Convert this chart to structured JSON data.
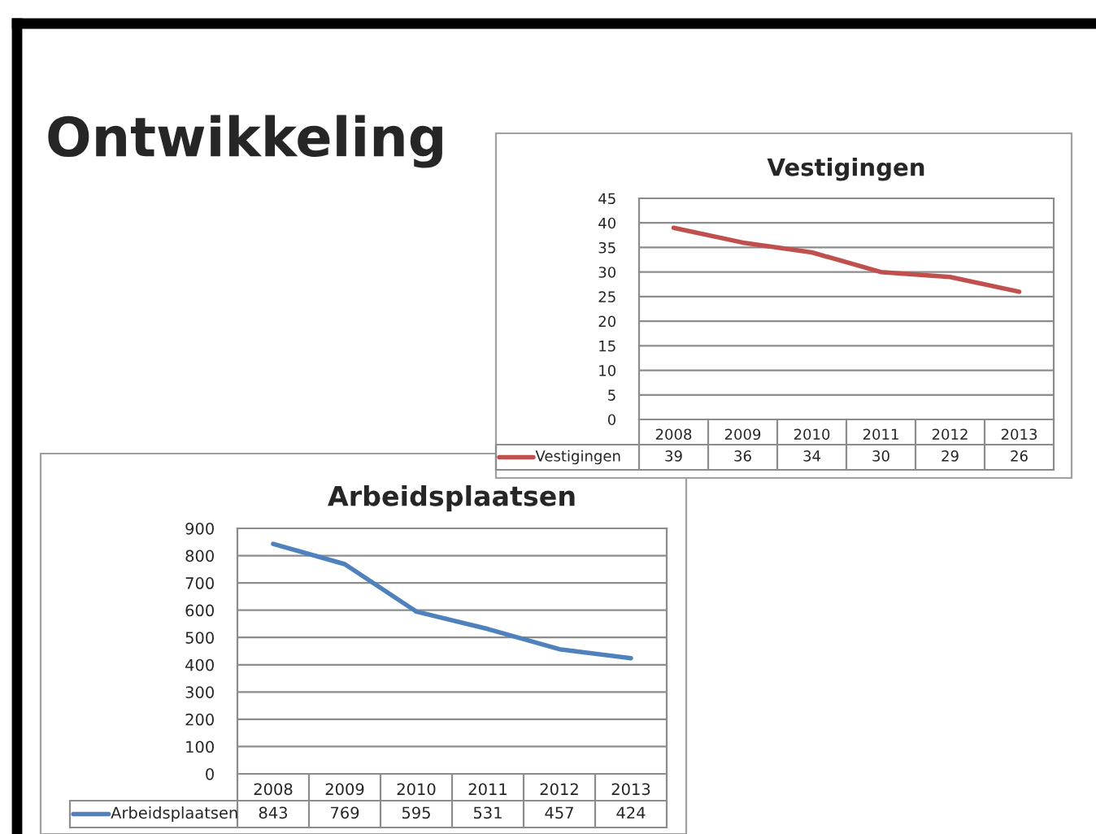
{
  "chart_data": [
    {
      "type": "line",
      "title": "Vestigingen",
      "annotations": [
        "Ontwikkeling"
      ],
      "categories": [
        "2008",
        "2009",
        "2010",
        "2011",
        "2012",
        "2013"
      ],
      "series": [
        {
          "name": "Vestigingen",
          "color": "#c0504d",
          "values": [
            39,
            36,
            34,
            30,
            29,
            26
          ]
        }
      ],
      "ylim": [
        0,
        45
      ],
      "yticks": [
        0,
        5,
        10,
        15,
        20,
        25,
        30,
        35,
        40,
        45
      ],
      "grid": "y",
      "legend": "bottom",
      "data_labels": true
    },
    {
      "type": "line",
      "title": "Arbeidsplaatsen",
      "categories": [
        "2008",
        "2009",
        "2010",
        "2011",
        "2012",
        "2013"
      ],
      "series": [
        {
          "name": "Arbeidsplaatsen",
          "color": "#4f81bd",
          "values": [
            843,
            769,
            595,
            531,
            457,
            424
          ]
        }
      ],
      "ylim": [
        0,
        900
      ],
      "yticks": [
        0,
        100,
        200,
        300,
        400,
        500,
        600,
        700,
        800,
        900
      ],
      "grid": "y",
      "legend": "bottom",
      "data_labels": true
    }
  ]
}
